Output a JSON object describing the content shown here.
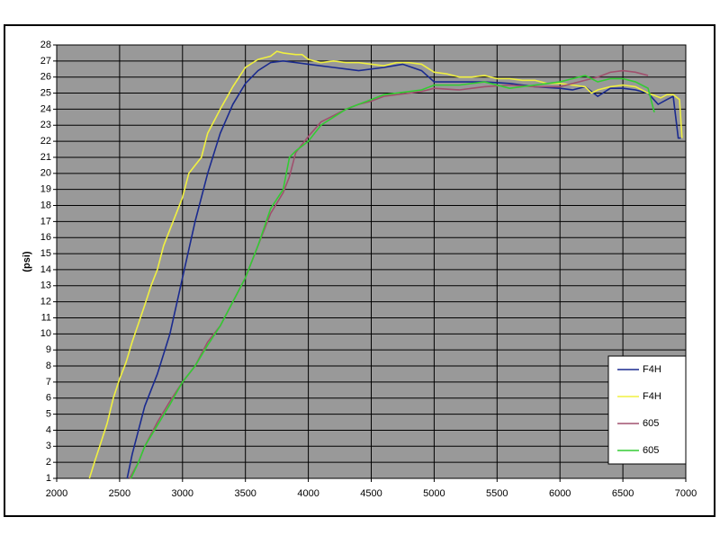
{
  "chart_data": {
    "type": "line",
    "y_label": "(psi)",
    "xlim": [
      2000,
      7000
    ],
    "xticks": [
      2000,
      2500,
      3000,
      3500,
      4000,
      4500,
      5000,
      5500,
      6000,
      6500,
      7000
    ],
    "ylim": [
      1,
      28
    ],
    "yticks": [
      1,
      2,
      3,
      4,
      5,
      6,
      7,
      8,
      9,
      10,
      11,
      12,
      13,
      14,
      15,
      16,
      17,
      18,
      19,
      20,
      21,
      22,
      23,
      24,
      25,
      26,
      27,
      28
    ],
    "grid": true,
    "legend": "right",
    "series": [
      {
        "name": "F4H",
        "color": "#1a2a8f",
        "x": [
          2560,
          2600,
          2650,
          2700,
          2800,
          2900,
          3000,
          3100,
          3200,
          3300,
          3400,
          3500,
          3600,
          3700,
          3800,
          3900,
          4000,
          4200,
          4400,
          4600,
          4750,
          4900,
          5000,
          5200,
          5400,
          5600,
          5800,
          6000,
          6100,
          6200,
          6300,
          6400,
          6500,
          6600,
          6700,
          6780,
          6850,
          6900,
          6940,
          6960
        ],
        "values": [
          1,
          2.5,
          4,
          5.5,
          7.5,
          10,
          13.5,
          17,
          20,
          22.5,
          24.3,
          25.6,
          26.4,
          26.9,
          27.0,
          26.9,
          26.8,
          26.6,
          26.4,
          26.6,
          26.8,
          26.4,
          25.7,
          25.7,
          25.7,
          25.6,
          25.4,
          25.3,
          25.2,
          25.4,
          24.8,
          25.3,
          25.3,
          25.2,
          25.0,
          24.3,
          24.6,
          24.8,
          22.2,
          22.2
        ]
      },
      {
        "name": "F4H",
        "color": "#f0f040",
        "x": [
          2260,
          2300,
          2350,
          2400,
          2450,
          2500,
          2550,
          2600,
          2700,
          2750,
          2800,
          2850,
          2900,
          3000,
          3050,
          3100,
          3150,
          3200,
          3300,
          3400,
          3500,
          3600,
          3700,
          3750,
          3800,
          3900,
          3950,
          4000,
          4100,
          4200,
          4300,
          4400,
          4500,
          4600,
          4700,
          4800,
          4900,
          5000,
          5100,
          5200,
          5300,
          5400,
          5500,
          5600,
          5700,
          5800,
          5900,
          6000,
          6100,
          6200,
          6250,
          6300,
          6400,
          6500,
          6600,
          6700,
          6800,
          6850,
          6900,
          6950,
          6970
        ],
        "values": [
          1,
          2,
          3.2,
          4.4,
          6,
          7.2,
          8.2,
          9.5,
          11.8,
          13,
          14,
          15.5,
          16.5,
          18.5,
          20,
          20.5,
          21,
          22.5,
          24,
          25.4,
          26.6,
          27.1,
          27.3,
          27.6,
          27.5,
          27.4,
          27.4,
          27.1,
          26.9,
          27.0,
          26.9,
          26.9,
          26.8,
          26.7,
          26.9,
          26.9,
          26.8,
          26.3,
          26.2,
          26.0,
          26.0,
          26.1,
          25.9,
          25.9,
          25.8,
          25.8,
          25.6,
          25.6,
          25.5,
          25.4,
          25.0,
          25.2,
          25.4,
          25.5,
          25.4,
          25.0,
          24.7,
          24.9,
          24.9,
          24.6,
          22.2
        ]
      },
      {
        "name": "605",
        "color": "#a0506e",
        "x": [
          2580,
          2650,
          2700,
          2800,
          2900,
          3000,
          3100,
          3200,
          3300,
          3400,
          3500,
          3600,
          3700,
          3800,
          3850,
          3900,
          4000,
          4100,
          4200,
          4300,
          4400,
          4500,
          4600,
          4700,
          4800,
          4900,
          5000,
          5200,
          5400,
          5600,
          5800,
          6000,
          6200,
          6300,
          6400,
          6500,
          6600,
          6700
        ],
        "values": [
          1,
          2,
          3,
          4.5,
          5.8,
          7,
          8,
          9.5,
          10.5,
          12,
          13.5,
          15.5,
          17.5,
          18.8,
          19.8,
          21.3,
          22.3,
          23.2,
          23.6,
          24.0,
          24.3,
          24.5,
          24.8,
          24.9,
          25.0,
          25.1,
          25.3,
          25.2,
          25.4,
          25.5,
          25.4,
          25.4,
          25.8,
          26.0,
          26.3,
          26.4,
          26.3,
          26.1
        ]
      },
      {
        "name": "605",
        "color": "#33cc33",
        "x": [
          2590,
          2650,
          2700,
          2800,
          2900,
          3000,
          3100,
          3200,
          3300,
          3400,
          3500,
          3600,
          3700,
          3800,
          3850,
          3900,
          4000,
          4100,
          4200,
          4300,
          4400,
          4500,
          4600,
          4700,
          4800,
          4900,
          5000,
          5200,
          5400,
          5600,
          5800,
          6000,
          6200,
          6300,
          6400,
          6500,
          6600,
          6700,
          6750
        ],
        "values": [
          1,
          2,
          3,
          4.3,
          5.6,
          7,
          8,
          9.3,
          10.5,
          12,
          13.5,
          15.5,
          17.8,
          19,
          21,
          21.4,
          22,
          23,
          23.5,
          24.0,
          24.3,
          24.6,
          24.9,
          25.0,
          25.1,
          25.2,
          25.5,
          25.5,
          25.7,
          25.3,
          25.5,
          25.7,
          26.1,
          25.7,
          25.9,
          25.9,
          25.7,
          25.3,
          23.8
        ]
      }
    ]
  }
}
